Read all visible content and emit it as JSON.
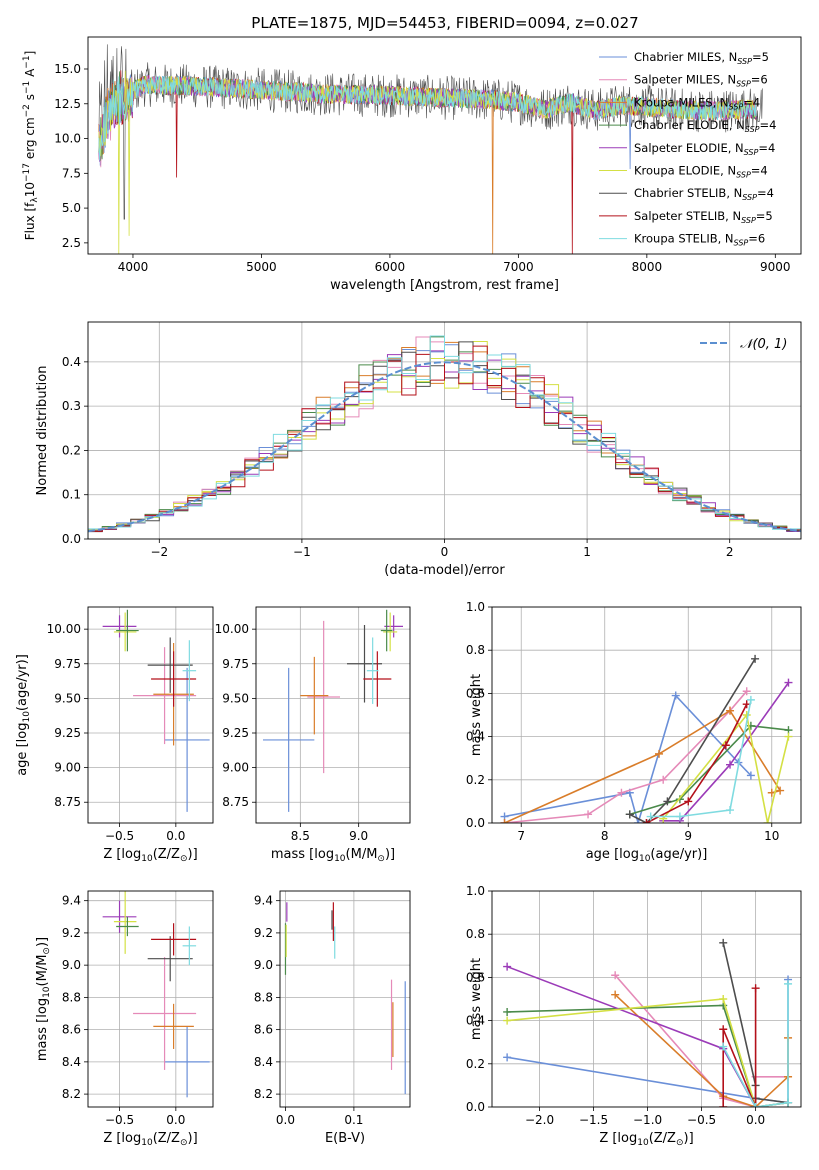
{
  "figure": {
    "title": "PLATE=1875, MJD=54453, FIBERID=0094, z=0.027"
  },
  "colors": {
    "Chabrier MILES": "#6a8fd8",
    "Salpeter MILES": "#e58ab8",
    "Kroupa MILES": "#d97d2a",
    "Chabrier ELODIE": "#4a8a4a",
    "Salpeter ELODIE": "#9b3bb8",
    "Kroupa ELODIE": "#d4e044",
    "Chabrier STELIB": "#4d4d4d",
    "Salpeter STELIB": "#b3101a",
    "Kroupa STELIB": "#7fdbe0"
  },
  "legend_spectrum": [
    {
      "pre": "Chabrier MILES, N",
      "sub": "SSP",
      "post": "=5",
      "color": "#6a8fd8"
    },
    {
      "pre": "Salpeter MILES, N",
      "sub": "SSP",
      "post": "=6",
      "color": "#e58ab8"
    },
    {
      "pre": "Kroupa MILES, N",
      "sub": "SSP",
      "post": "=4",
      "color": "#d97d2a"
    },
    {
      "pre": "Chabrier ELODIE, N",
      "sub": "SSP",
      "post": "=4",
      "color": "#4a8a4a"
    },
    {
      "pre": "Salpeter ELODIE, N",
      "sub": "SSP",
      "post": "=4",
      "color": "#9b3bb8"
    },
    {
      "pre": "Kroupa ELODIE, N",
      "sub": "SSP",
      "post": "=4",
      "color": "#d4e044"
    },
    {
      "pre": "Chabrier STELIB, N",
      "sub": "SSP",
      "post": "=4",
      "color": "#4d4d4d"
    },
    {
      "pre": "Salpeter STELIB, N",
      "sub": "SSP",
      "post": "=5",
      "color": "#b3101a"
    },
    {
      "pre": "Kroupa STELIB, N",
      "sub": "SSP",
      "post": "=6",
      "color": "#7fdbe0"
    }
  ],
  "legend_hist": {
    "label": "𝒩(0, 1)",
    "color": "#5b8fd0"
  },
  "chart_data": [
    {
      "id": "spectrum",
      "type": "line",
      "xlabel": "wavelength [Angstrom, rest frame]",
      "ylabel_parts": {
        "a": "Flux [f",
        "b": "λ",
        "c": "10",
        "d": "−17",
        "e": " erg cm",
        "f": "−2",
        "g": " s",
        "h": "−1",
        "i": " A",
        "j": "−1",
        "k": "]"
      },
      "xlim": [
        3650,
        9200
      ],
      "ylim": [
        1.7,
        17.3
      ],
      "xticks": [
        4000,
        5000,
        6000,
        7000,
        8000,
        9000
      ],
      "yticks": [
        2.5,
        5.0,
        7.5,
        10.0,
        12.5,
        15.0
      ],
      "ytick_labels": [
        "2.5",
        "5.0",
        "7.5",
        "10.0",
        "12.5",
        "15.0"
      ],
      "continuum": [
        [
          3740,
          9.5
        ],
        [
          3800,
          12.0
        ],
        [
          3900,
          13.2
        ],
        [
          4000,
          13.4
        ],
        [
          4100,
          13.9
        ],
        [
          4200,
          13.8
        ],
        [
          4400,
          13.8
        ],
        [
          4600,
          13.7
        ],
        [
          5000,
          13.5
        ],
        [
          5500,
          13.2
        ],
        [
          6000,
          13.1
        ],
        [
          6500,
          12.9
        ],
        [
          6800,
          12.8
        ],
        [
          7000,
          12.6
        ],
        [
          7200,
          12.1
        ],
        [
          7400,
          12.6
        ],
        [
          7600,
          12.0
        ],
        [
          7800,
          12.4
        ],
        [
          8000,
          12.3
        ],
        [
          8200,
          12.1
        ],
        [
          8500,
          12.0
        ],
        [
          8800,
          12.1
        ]
      ],
      "dips": [
        {
          "x": 3890,
          "y": 1.7,
          "series": "Kroupa ELODIE"
        },
        {
          "x": 3933,
          "y": 4.2,
          "series": "Chabrier STELIB"
        },
        {
          "x": 3970,
          "y": 3.0,
          "series": "Kroupa ELODIE"
        },
        {
          "x": 4340,
          "y": 7.2,
          "series": "Salpeter STELIB"
        },
        {
          "x": 6800,
          "y": 1.7,
          "series": "Kroupa MILES"
        },
        {
          "x": 7420,
          "y": 1.7,
          "series": "Salpeter STELIB"
        },
        {
          "x": 7870,
          "y": 7.8,
          "series": "Chabrier MILES"
        }
      ]
    },
    {
      "id": "residual_hist",
      "type": "bar",
      "xlabel": "(data-model)/error",
      "ylabel": "Normed distribution",
      "xlim": [
        -2.5,
        2.5
      ],
      "ylim": [
        0,
        0.49
      ],
      "xticks": [
        -2,
        -1,
        0,
        1,
        2
      ],
      "xtick_labels": [
        "−2",
        "−1",
        "0",
        "1",
        "2"
      ],
      "yticks": [
        0.0,
        0.1,
        0.2,
        0.3,
        0.4
      ],
      "ytick_labels": [
        "0.0",
        "0.1",
        "0.2",
        "0.3",
        "0.4"
      ],
      "bin_width": 0.1,
      "gaussian": {
        "mean": 0,
        "sigma": 1,
        "label": "𝒩(0, 1)"
      }
    },
    {
      "id": "age_vs_Z",
      "type": "scatter",
      "xlabel": {
        "pre": "Z [log",
        "sub": "10",
        "post": "(Z/Z",
        "sub2": "⊙",
        "post2": ")]"
      },
      "ylabel": {
        "pre": "age  [log",
        "sub": "10",
        "post": "(age/yr)]"
      },
      "xlim": [
        -0.78,
        0.33
      ],
      "ylim": [
        8.6,
        10.16
      ],
      "xticks": [
        -0.5,
        0.0
      ],
      "xtick_labels": [
        "−0.5",
        "0.0"
      ],
      "yticks": [
        8.75,
        9.0,
        9.25,
        9.5,
        9.75,
        10.0
      ],
      "ytick_labels": [
        "8.75",
        "9.00",
        "9.25",
        "9.50",
        "9.75",
        "10.00"
      ],
      "points": [
        {
          "series": "Chabrier MILES",
          "x": 0.1,
          "xerr": 0.2,
          "y": 9.2,
          "yerr": 0.52
        },
        {
          "series": "Salpeter MILES",
          "x": -0.1,
          "xerr": 0.28,
          "y": 9.52,
          "yerr": 0.35
        },
        {
          "series": "Kroupa MILES",
          "x": -0.02,
          "xerr": 0.18,
          "y": 9.53,
          "yerr": 0.37
        },
        {
          "series": "Chabrier STELIB",
          "x": -0.05,
          "xerr": 0.2,
          "y": 9.74,
          "yerr": 0.2
        },
        {
          "series": "Salpeter STELIB",
          "x": -0.02,
          "xerr": 0.2,
          "y": 9.64,
          "yerr": 0.2
        },
        {
          "series": "Kroupa STELIB",
          "x": 0.12,
          "xerr": 0.06,
          "y": 9.7,
          "yerr": 0.22
        },
        {
          "series": "Salpeter ELODIE",
          "x": -0.5,
          "xerr": 0.15,
          "y": 10.02,
          "yerr": 0.08
        },
        {
          "series": "Kroupa ELODIE",
          "x": -0.45,
          "xerr": 0.1,
          "y": 9.98,
          "yerr": 0.14
        },
        {
          "series": "Chabrier ELODIE",
          "x": -0.43,
          "xerr": 0.1,
          "y": 9.99,
          "yerr": 0.15
        }
      ]
    },
    {
      "id": "age_vs_mass",
      "type": "scatter",
      "xlabel": {
        "pre": "mass [log",
        "sub": "10",
        "post": "(M/M",
        "sub2": "⊙",
        "post2": ")]"
      },
      "ylabel": "",
      "xlim": [
        8.12,
        9.44
      ],
      "ylim": [
        8.6,
        10.16
      ],
      "xticks": [
        8.5,
        9.0
      ],
      "xtick_labels": [
        "8.5",
        "9.0"
      ],
      "yticks": [
        8.75,
        9.0,
        9.25,
        9.5,
        9.75,
        10.0
      ],
      "ytick_labels": [
        "8.75",
        "9.00",
        "9.25",
        "9.50",
        "9.75",
        "10.00"
      ],
      "points": [
        {
          "series": "Chabrier MILES",
          "x": 8.4,
          "xerr": 0.22,
          "y": 9.2,
          "yerr": 0.52
        },
        {
          "series": "Salpeter MILES",
          "x": 8.7,
          "xerr": 0.14,
          "y": 9.51,
          "yerr": 0.55
        },
        {
          "series": "Kroupa MILES",
          "x": 8.62,
          "xerr": 0.12,
          "y": 9.52,
          "yerr": 0.28
        },
        {
          "series": "Chabrier STELIB",
          "x": 9.05,
          "xerr": 0.15,
          "y": 9.75,
          "yerr": 0.28
        },
        {
          "series": "Salpeter STELIB",
          "x": 9.16,
          "xerr": 0.12,
          "y": 9.64,
          "yerr": 0.2
        },
        {
          "series": "Kroupa STELIB",
          "x": 9.12,
          "xerr": 0.05,
          "y": 9.7,
          "yerr": 0.24
        },
        {
          "series": "Salpeter ELODIE",
          "x": 9.3,
          "xerr": 0.08,
          "y": 10.02,
          "yerr": 0.08
        },
        {
          "series": "Kroupa ELODIE",
          "x": 9.27,
          "xerr": 0.06,
          "y": 9.98,
          "yerr": 0.14
        },
        {
          "series": "Chabrier ELODIE",
          "x": 9.24,
          "xerr": 0.05,
          "y": 9.99,
          "yerr": 0.15
        }
      ]
    },
    {
      "id": "weight_vs_age",
      "type": "line",
      "xlabel": {
        "pre": "age  [log",
        "sub": "10",
        "post": "(age/yr)]"
      },
      "ylabel": "mass weight",
      "xlim": [
        6.65,
        10.35
      ],
      "ylim": [
        0,
        1.0
      ],
      "xticks": [
        7,
        8,
        9,
        10
      ],
      "xtick_labels": [
        "7",
        "8",
        "9",
        "10"
      ],
      "yticks": [
        0.0,
        0.2,
        0.4,
        0.6,
        0.8,
        1.0
      ],
      "ytick_labels": [
        "0.0",
        "0.2",
        "0.4",
        "0.6",
        "0.8",
        "1.0"
      ],
      "series": [
        {
          "name": "Chabrier MILES",
          "x": [
            6.8,
            8.3,
            8.4,
            8.85,
            9.6,
            9.75
          ],
          "y": [
            0.03,
            0.14,
            0.0,
            0.59,
            0.28,
            0.22
          ]
        },
        {
          "name": "Salpeter MILES",
          "x": [
            6.8,
            7.8,
            8.2,
            8.7,
            9.5,
            9.7
          ],
          "y": [
            0.0,
            0.04,
            0.14,
            0.2,
            0.52,
            0.61
          ]
        },
        {
          "name": "Kroupa MILES",
          "x": [
            6.8,
            8.65,
            9.5,
            10.1,
            10.0
          ],
          "y": [
            0.0,
            0.32,
            0.52,
            0.15,
            0.14
          ]
        },
        {
          "name": "Chabrier ELODIE",
          "x": [
            8.3,
            8.9,
            9.75,
            10.2
          ],
          "y": [
            0.04,
            0.11,
            0.45,
            0.43
          ]
        },
        {
          "name": "Salpeter ELODIE",
          "x": [
            8.7,
            8.9,
            9.5,
            10.2
          ],
          "y": [
            0.01,
            0.01,
            0.27,
            0.65
          ]
        },
        {
          "name": "Kroupa ELODIE",
          "x": [
            8.7,
            9.7,
            9.95,
            10.2
          ],
          "y": [
            0.02,
            0.5,
            0.0,
            0.4
          ]
        },
        {
          "name": "Chabrier STELIB",
          "x": [
            8.3,
            8.5,
            8.75,
            9.8
          ],
          "y": [
            0.04,
            0.0,
            0.1,
            0.76
          ]
        },
        {
          "name": "Salpeter STELIB",
          "x": [
            8.5,
            9.0,
            9.45,
            9.7
          ],
          "y": [
            0.0,
            0.1,
            0.36,
            0.55
          ]
        },
        {
          "name": "Kroupa STELIB",
          "x": [
            8.55,
            8.9,
            9.5,
            9.75
          ],
          "y": [
            0.03,
            0.03,
            0.06,
            0.57
          ]
        }
      ]
    },
    {
      "id": "mass_vs_Z",
      "type": "scatter",
      "xlabel": {
        "pre": "Z [log",
        "sub": "10",
        "post": "(Z/Z",
        "sub2": "⊙",
        "post2": ")]"
      },
      "ylabel": {
        "pre": "mass [log",
        "sub": "10",
        "post": "(M/M",
        "sub2": "⊙",
        "post2": ")]"
      },
      "xlim": [
        -0.78,
        0.33
      ],
      "ylim": [
        8.12,
        9.46
      ],
      "xticks": [
        -0.5,
        0.0
      ],
      "xtick_labels": [
        "−0.5",
        "0.0"
      ],
      "yticks": [
        8.2,
        8.4,
        8.6,
        8.8,
        9.0,
        9.2,
        9.4
      ],
      "ytick_labels": [
        "8.2",
        "8.4",
        "8.6",
        "8.8",
        "9.0",
        "9.2",
        "9.4"
      ],
      "points": [
        {
          "series": "Chabrier MILES",
          "x": 0.1,
          "xerr": 0.2,
          "y": 8.4,
          "yerr": 0.22
        },
        {
          "series": "Salpeter MILES",
          "x": -0.1,
          "xerr": 0.28,
          "y": 8.7,
          "yerr": 0.35
        },
        {
          "series": "Kroupa MILES",
          "x": -0.02,
          "xerr": 0.18,
          "y": 8.62,
          "yerr": 0.14
        },
        {
          "series": "Chabrier STELIB",
          "x": -0.05,
          "xerr": 0.2,
          "y": 9.04,
          "yerr": 0.14
        },
        {
          "series": "Salpeter STELIB",
          "x": -0.02,
          "xerr": 0.2,
          "y": 9.16,
          "yerr": 0.1
        },
        {
          "series": "Kroupa STELIB",
          "x": 0.12,
          "xerr": 0.06,
          "y": 9.12,
          "yerr": 0.12
        },
        {
          "series": "Salpeter ELODIE",
          "x": -0.5,
          "xerr": 0.15,
          "y": 9.3,
          "yerr": 0.1
        },
        {
          "series": "Kroupa ELODIE",
          "x": -0.45,
          "xerr": 0.1,
          "y": 9.27,
          "yerr": 0.2
        },
        {
          "series": "Chabrier ELODIE",
          "x": -0.43,
          "xerr": 0.1,
          "y": 9.24,
          "yerr": 0.06
        }
      ]
    },
    {
      "id": "mass_vs_ebv",
      "type": "scatter",
      "xlabel": "E(B-V)",
      "ylabel": "",
      "xlim": [
        -0.008,
        0.182
      ],
      "ylim": [
        8.12,
        9.46
      ],
      "xticks": [
        0.0,
        0.1
      ],
      "xtick_labels": [
        "0.0",
        "0.1"
      ],
      "yticks": [
        8.2,
        8.4,
        8.6,
        8.8,
        9.0,
        9.2,
        9.4
      ],
      "ytick_labels": [
        "8.2",
        "8.4",
        "8.6",
        "8.8",
        "9.0",
        "9.2",
        "9.4"
      ],
      "points": [
        {
          "series": "Chabrier MILES",
          "x": 0.175,
          "xerr": 0,
          "y": 8.55,
          "yerr": 0.35
        },
        {
          "series": "Salpeter MILES",
          "x": 0.155,
          "xerr": 0,
          "y": 8.63,
          "yerr": 0.28
        },
        {
          "series": "Kroupa MILES",
          "x": 0.157,
          "xerr": 0,
          "y": 8.6,
          "yerr": 0.17
        },
        {
          "series": "Chabrier ELODIE",
          "x": 0.0,
          "xerr": 0,
          "y": 9.1,
          "yerr": 0.16
        },
        {
          "series": "Kroupa ELODIE",
          "x": 0.001,
          "xerr": 0,
          "y": 9.15,
          "yerr": 0.1
        },
        {
          "series": "Salpeter ELODIE",
          "x": 0.002,
          "xerr": 0,
          "y": 9.33,
          "yerr": 0.06
        },
        {
          "series": "Chabrier STELIB",
          "x": 0.068,
          "xerr": 0,
          "y": 9.28,
          "yerr": 0.06
        },
        {
          "series": "Salpeter STELIB",
          "x": 0.07,
          "xerr": 0,
          "y": 9.27,
          "yerr": 0.12
        },
        {
          "series": "Kroupa STELIB",
          "x": 0.072,
          "xerr": 0,
          "y": 9.14,
          "yerr": 0.1
        }
      ]
    },
    {
      "id": "weight_vs_Z",
      "type": "line",
      "xlabel": {
        "pre": "Z [log",
        "sub": "10",
        "post": "(Z/Z",
        "sub2": "⊙",
        "post2": ")]"
      },
      "ylabel": "mass weight",
      "xlim": [
        -2.44,
        0.42
      ],
      "ylim": [
        0,
        1.0
      ],
      "xticks": [
        -2.0,
        -1.5,
        -1.0,
        -0.5,
        0.0
      ],
      "xtick_labels": [
        "−2.0",
        "−1.5",
        "−1.0",
        "−0.5",
        "0.0"
      ],
      "yticks": [
        0.0,
        0.2,
        0.4,
        0.6,
        0.8,
        1.0
      ],
      "ytick_labels": [
        "0.0",
        "0.2",
        "0.4",
        "0.6",
        "0.8",
        "1.0"
      ],
      "series": [
        {
          "name": "Chabrier MILES",
          "x": [
            -2.3,
            0.0,
            0.3,
            0.3
          ],
          "y": [
            0.23,
            0.04,
            0.02,
            0.59
          ]
        },
        {
          "name": "Salpeter MILES",
          "x": [
            -1.3,
            -0.3,
            0.0,
            0.0,
            0.3
          ],
          "y": [
            0.61,
            0.04,
            0.0,
            0.14,
            0.14
          ]
        },
        {
          "name": "Kroupa MILES",
          "x": [
            -1.3,
            -0.3,
            0.0,
            0.3,
            0.3
          ],
          "y": [
            0.52,
            0.05,
            0.0,
            0.14,
            0.32
          ]
        },
        {
          "name": "Chabrier ELODIE",
          "x": [
            -2.3,
            -0.3,
            0.0,
            0.3
          ],
          "y": [
            0.44,
            0.47,
            0.0,
            0.02
          ]
        },
        {
          "name": "Salpeter ELODIE",
          "x": [
            -2.3,
            -0.3,
            0.0,
            0.3
          ],
          "y": [
            0.65,
            0.27,
            0.0,
            0.02
          ]
        },
        {
          "name": "Kroupa ELODIE",
          "x": [
            -2.3,
            -0.3,
            0.0,
            0.3
          ],
          "y": [
            0.4,
            0.5,
            0.0,
            0.02
          ]
        },
        {
          "name": "Chabrier STELIB",
          "x": [
            -0.3,
            0.0,
            0.0,
            0.3
          ],
          "y": [
            0.76,
            0.1,
            0.04,
            0.02
          ]
        },
        {
          "name": "Salpeter STELIB",
          "x": [
            -0.3,
            -0.3,
            0.0,
            0.0
          ],
          "y": [
            0.0,
            0.36,
            0.0,
            0.55
          ]
        },
        {
          "name": "Kroupa STELIB",
          "x": [
            -0.3,
            0.0,
            0.3,
            0.3
          ],
          "y": [
            0.28,
            0.0,
            0.02,
            0.57
          ]
        }
      ]
    }
  ]
}
